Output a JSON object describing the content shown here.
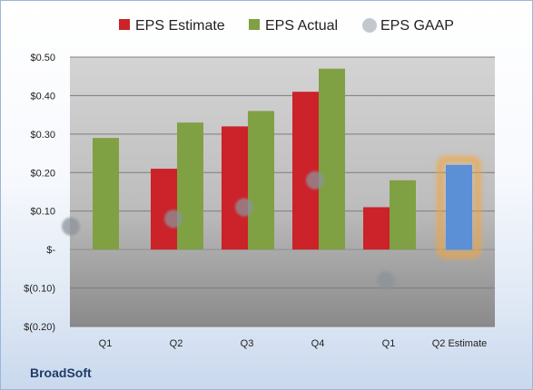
{
  "chart_data": {
    "type": "bar",
    "categories": [
      "Q1",
      "Q2",
      "Q3",
      "Q4",
      "Q1",
      "Q2 Estimate"
    ],
    "series": [
      {
        "name": "EPS Estimate",
        "color": "#cc2229",
        "values": [
          null,
          0.21,
          0.32,
          0.41,
          0.11,
          null
        ]
      },
      {
        "name": "EPS Actual",
        "color": "#80a044",
        "values": [
          0.29,
          0.33,
          0.36,
          0.47,
          0.18,
          null
        ]
      },
      {
        "name": "EPS GAAP",
        "color": "#9aa3ad",
        "marker": "circle",
        "values": [
          0.06,
          0.08,
          0.11,
          0.18,
          -0.08,
          null
        ]
      },
      {
        "name": "",
        "color": "#5b8fd6",
        "highlight": "#f0a540",
        "values": [
          null,
          null,
          null,
          null,
          null,
          0.22
        ]
      }
    ],
    "ylim": [
      -0.2,
      0.5
    ],
    "yticks": [
      {
        "v": 0.5,
        "label": "$0.50"
      },
      {
        "v": 0.4,
        "label": "$0.40"
      },
      {
        "v": 0.3,
        "label": "$0.30"
      },
      {
        "v": 0.2,
        "label": "$0.20"
      },
      {
        "v": 0.1,
        "label": "$0.10"
      },
      {
        "v": 0.0,
        "label": "$-"
      },
      {
        "v": -0.1,
        "label": "$(0.10)"
      },
      {
        "v": -0.2,
        "label": "$(0.20)"
      }
    ],
    "grid": true,
    "legend": "top"
  },
  "company": "BroadSoft"
}
